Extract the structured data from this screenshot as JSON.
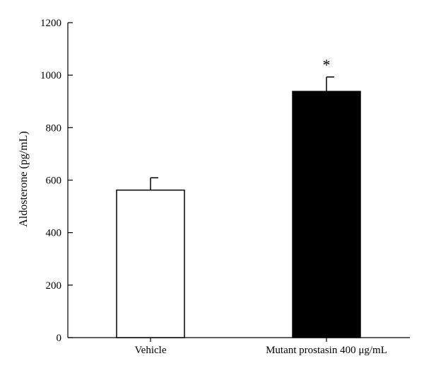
{
  "chart_data": {
    "type": "bar",
    "title": "",
    "xlabel": "",
    "ylabel": "Aldosterone (pg/mL)",
    "ylim": [
      0,
      1200
    ],
    "yticks": [
      0,
      200,
      400,
      600,
      800,
      1000,
      1200
    ],
    "grid": false,
    "categories": [
      "Vehicle",
      "Mutant prostasin 400 μg/mL"
    ],
    "values": [
      562,
      938
    ],
    "errors": [
      47,
      55
    ],
    "bar_colors": [
      "#ffffff",
      "#000000"
    ],
    "annotations": [
      "",
      "*"
    ]
  }
}
